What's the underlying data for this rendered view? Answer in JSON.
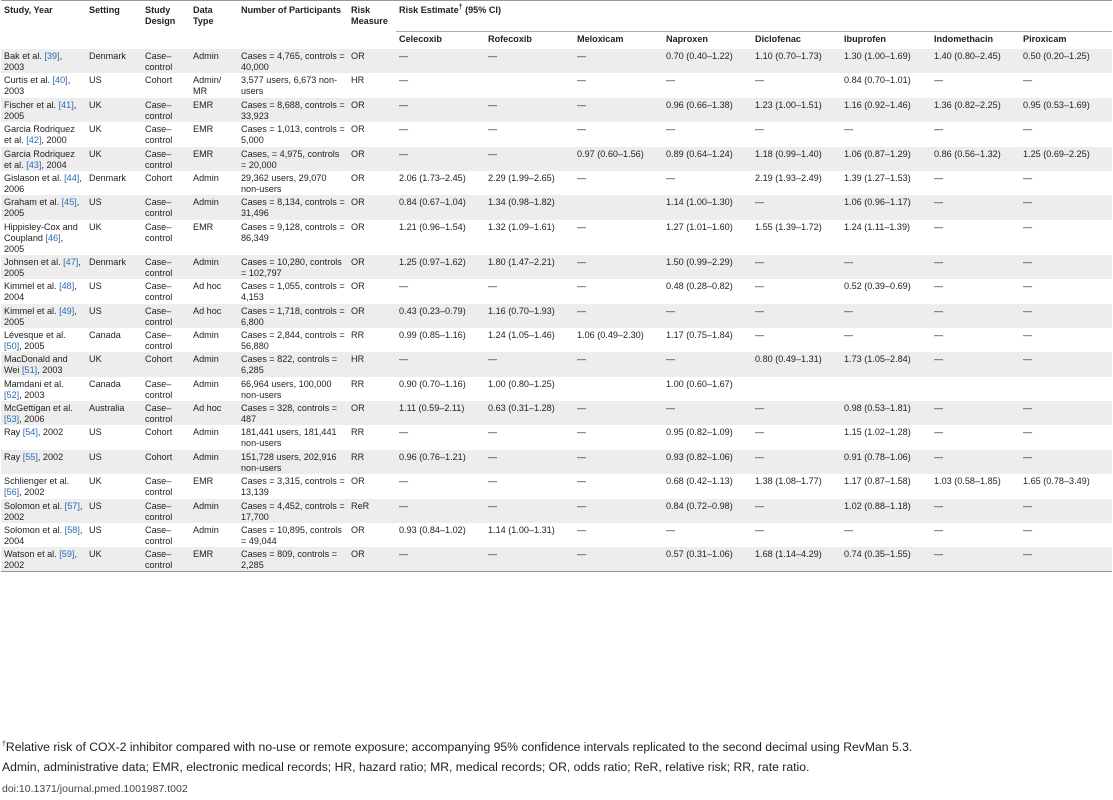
{
  "headers": {
    "study": "Study, Year",
    "setting": "Setting",
    "design": "Study Design",
    "data_type": "Data Type",
    "participants": "Number of Participants",
    "risk_measure": "Risk Measure",
    "risk_estimate": "Risk Estimate",
    "risk_estimate_mark": "†",
    "risk_estimate_ci": " (95% CI)",
    "drugs": [
      "Celecoxib",
      "Rofecoxib",
      "Meloxicam",
      "Naproxen",
      "Diclofenac",
      "Ibuprofen",
      "Indomethacin",
      "Piroxicam"
    ]
  },
  "rows": [
    {
      "study": "Bak et al. ",
      "ref": "[39]",
      "year": ", 2003",
      "setting": "Denmark",
      "design": "Case–control",
      "data_type": "Admin",
      "participants": "Cases = 4,765, controls = 40,000",
      "measure": "OR",
      "est": [
        "—",
        "—",
        "—",
        "0.70 (0.40–1.22)",
        "1.10 (0.70–1.73)",
        "1.30 (1.00–1.69)",
        "1.40 (0.80–2.45)",
        "0.50 (0.20–1.25)"
      ]
    },
    {
      "study": "Curtis et al. ",
      "ref": "[40]",
      "year": ", 2003",
      "setting": "US",
      "design": "Cohort",
      "data_type": "Admin/ MR",
      "participants": "3,577 users, 6,673 non-users",
      "measure": "HR",
      "est": [
        "—",
        "",
        "—",
        "—",
        "—",
        "0.84 (0.70–1.01)",
        "—",
        "—"
      ]
    },
    {
      "study": "Fischer et al. ",
      "ref": "[41]",
      "year": ", 2005",
      "setting": "UK",
      "design": "Case–control",
      "data_type": "EMR",
      "participants": "Cases = 8,688, controls = 33,923",
      "measure": "OR",
      "est": [
        "—",
        "—",
        "—",
        "0.96 (0.66–1.38)",
        "1.23 (1.00–1.51)",
        "1.16 (0.92–1.46)",
        "1.36 (0.82–2.25)",
        "0.95 (0.53–1.69)"
      ]
    },
    {
      "study": "Garcia Rodriquez et al. ",
      "ref": "[42]",
      "year": ", 2000",
      "setting": "UK",
      "design": "Case–control",
      "data_type": "EMR",
      "participants": "Cases = 1,013, controls = 5,000",
      "measure": "OR",
      "est": [
        "—",
        "—",
        "—",
        "—",
        "—",
        "—",
        "—",
        "—"
      ]
    },
    {
      "study": "Garcia Rodriquez et al. ",
      "ref": "[43]",
      "year": ", 2004",
      "setting": "UK",
      "design": "Case–control",
      "data_type": "EMR",
      "participants": "Cases, = 4,975, controls = 20,000",
      "measure": "OR",
      "est": [
        "—",
        "—",
        "0.97 (0.60–1.56)",
        "0.89 (0.64–1.24)",
        "1.18 (0.99–1.40)",
        "1.06 (0.87–1.29)",
        "0.86 (0.56–1.32)",
        "1.25 (0.69–2.25)"
      ]
    },
    {
      "study": "Gislason et al. ",
      "ref": "[44]",
      "year": ", 2006",
      "setting": "Denmark",
      "design": "Cohort",
      "data_type": "Admin",
      "participants": "29,362 users, 29,070 non-users",
      "measure": "OR",
      "est": [
        "2.06 (1.73–2.45)",
        "2.29 (1.99–2.65)",
        "—",
        "—",
        "2.19 (1.93–2.49)",
        "1.39 (1.27–1.53)",
        "—",
        "—"
      ]
    },
    {
      "study": "Graham et al. ",
      "ref": "[45]",
      "year": ", 2005",
      "setting": "US",
      "design": "Case–control",
      "data_type": "Admin",
      "participants": "Cases = 8,134, controls = 31,496",
      "measure": "OR",
      "est": [
        "0.84 (0.67–1.04)",
        "1.34 (0.98–1.82)",
        "",
        "1.14 (1.00–1.30)",
        "—",
        "1.06 (0.96–1.17)",
        "—",
        "—"
      ]
    },
    {
      "study": "Hippisley-Cox and Coupland ",
      "ref": "[46]",
      "year": ", 2005",
      "setting": "UK",
      "design": "Case–control",
      "data_type": "EMR",
      "participants": "Cases = 9,128, controls = 86,349",
      "measure": "OR",
      "est": [
        "1.21 (0.96–1.54)",
        "1.32 (1.09–1.61)",
        "—",
        "1.27 (1.01–1.60)",
        "1.55 (1.39–1.72)",
        "1.24 (1.11–1.39)",
        "—",
        "—"
      ]
    },
    {
      "study": "Johnsen et al. ",
      "ref": "[47]",
      "year": ", 2005",
      "setting": "Denmark",
      "design": "Case–control",
      "data_type": "Admin",
      "participants": "Cases = 10,280, controls = 102,797",
      "measure": "OR",
      "est": [
        "1.25 (0.97–1.62)",
        "1.80 (1.47–2.21)",
        "—",
        "1.50 (0.99–2.29)",
        "—",
        "—",
        "—",
        "—"
      ]
    },
    {
      "study": "Kimmel et al. ",
      "ref": "[48]",
      "year": ", 2004",
      "setting": "US",
      "design": "Case–control",
      "data_type": "Ad hoc",
      "participants": "Cases = 1,055, controls = 4,153",
      "measure": "OR",
      "est": [
        "—",
        "—",
        "—",
        "0.48 (0.28–0.82)",
        "—",
        "0.52 (0.39–0.69)",
        "—",
        "—"
      ]
    },
    {
      "study": "Kimmel et al. ",
      "ref": "[49]",
      "year": ", 2005",
      "setting": "US",
      "design": "Case–control",
      "data_type": "Ad hoc",
      "participants": "Cases = 1,718, controls = 6,800",
      "measure": "OR",
      "est": [
        "0.43 (0.23–0.79)",
        "1.16 (0.70–1.93)",
        "—",
        "—",
        "—",
        "—",
        "—",
        "—"
      ]
    },
    {
      "study": "Lévesque et al. ",
      "ref": "[50]",
      "year": ", 2005",
      "setting": "Canada",
      "design": "Case–control",
      "data_type": "Admin",
      "participants": "Cases = 2,844, controls = 56,880",
      "measure": "RR",
      "est": [
        "0.99 (0.85–1.16)",
        "1.24 (1.05–1.46)",
        "1.06 (0.49–2.30)",
        "1.17 (0.75–1.84)",
        "—",
        "—",
        "—",
        "—"
      ]
    },
    {
      "study": "MacDonald and Wei ",
      "ref": "[51]",
      "year": ", 2003",
      "setting": "UK",
      "design": "Cohort",
      "data_type": "Admin",
      "participants": "Cases = 822, controls = 6,285",
      "measure": "HR",
      "est": [
        "—",
        "—",
        "—",
        "—",
        "0.80 (0.49–1.31)",
        "1.73 (1.05–2.84)",
        "—",
        "—"
      ]
    },
    {
      "study": "Mamdani et al. ",
      "ref": "[52]",
      "year": ", 2003",
      "setting": "Canada",
      "design": "Case–control",
      "data_type": "Admin",
      "participants": "66,964 users, 100,000 non-users",
      "measure": "RR",
      "est": [
        "0.90 (0.70–1.16)",
        "1.00 (0.80–1.25)",
        "",
        "1.00 (0.60–1.67)",
        "",
        "",
        "",
        ""
      ]
    },
    {
      "study": "McGettigan et al. ",
      "ref": "[53]",
      "year": ", 2006",
      "setting": "Australia",
      "design": "Case–control",
      "data_type": "Ad hoc",
      "participants": "Cases = 328, controls = 487",
      "measure": "OR",
      "est": [
        "1.11 (0.59–2.11)",
        "0.63 (0.31–1.28)",
        "—",
        "—",
        "—",
        "0.98 (0.53–1.81)",
        "—",
        "—"
      ]
    },
    {
      "study": "Ray ",
      "ref": "[54]",
      "year": ", 2002",
      "setting": "US",
      "design": "Cohort",
      "data_type": "Admin",
      "participants": "181,441 users, 181,441 non-users",
      "measure": "RR",
      "est": [
        "—",
        "—",
        "—",
        "0.95 (0.82–1.09)",
        "—",
        "1.15 (1.02–1.28)",
        "—",
        "—"
      ]
    },
    {
      "study": "Ray ",
      "ref": "[55]",
      "year": ", 2002",
      "setting": "US",
      "design": "Cohort",
      "data_type": "Admin",
      "participants": "151,728 users, 202,916 non-users",
      "measure": "RR",
      "est": [
        "0.96 (0.76–1.21)",
        "—",
        "—",
        "0.93 (0.82–1.06)",
        "—",
        "0.91 (0.78–1.06)",
        "—",
        "—"
      ]
    },
    {
      "study": "Schlienger et al. ",
      "ref": "[56]",
      "year": ", 2002",
      "setting": "UK",
      "design": "Case–control",
      "data_type": "EMR",
      "participants": "Cases = 3,315, controls = 13,139",
      "measure": "OR",
      "est": [
        "—",
        "—",
        "—",
        "0.68 (0.42–1.13)",
        "1.38 (1.08–1.77)",
        "1.17 (0.87–1.58)",
        "1.03 (0.58–1.85)",
        "1.65 (0.78–3.49)"
      ]
    },
    {
      "study": "Solomon et al. ",
      "ref": "[57]",
      "year": ", 2002",
      "setting": "US",
      "design": "Case–control",
      "data_type": "Admin",
      "participants": "Cases = 4,452, controls = 17,700",
      "measure": "ReR",
      "est": [
        "—",
        "—",
        "—",
        "0.84 (0.72–0.98)",
        "—",
        "1.02 (0.88–1.18)",
        "—",
        "—"
      ]
    },
    {
      "study": "Solomon et al. ",
      "ref": "[58]",
      "year": ", 2004",
      "setting": "US",
      "design": "Case–control",
      "data_type": "Admin",
      "participants": "Cases = 10,895, controls = 49,044",
      "measure": "OR",
      "est": [
        "0.93 (0.84–1.02)",
        "1.14 (1.00–1.31)",
        "—",
        "—",
        "—",
        "—",
        "—",
        "—"
      ]
    },
    {
      "study": "Watson et al. ",
      "ref": "[59]",
      "year": ", 2002",
      "setting": "UK",
      "design": "Case–control",
      "data_type": "EMR",
      "participants": "Cases = 809, controls = 2,285",
      "measure": "OR",
      "est": [
        "—",
        "—",
        "—",
        "0.57 (0.31–1.06)",
        "1.68 (1.14–4.29)",
        "0.74 (0.35–1.55)",
        "—",
        "—"
      ]
    }
  ],
  "footnotes": {
    "mark": "†",
    "note1": "Relative risk of COX-2 inhibitor compared with no-use or remote exposure; accompanying 95% confidence intervals replicated to the second decimal using RevMan 5.3.",
    "note2": "Admin, administrative data; EMR, electronic medical records; HR, hazard ratio; MR, medical records; OR, odds ratio; ReR, relative risk; RR, rate ratio."
  },
  "doi": "doi:10.1371/journal.pmed.1001987.t002"
}
